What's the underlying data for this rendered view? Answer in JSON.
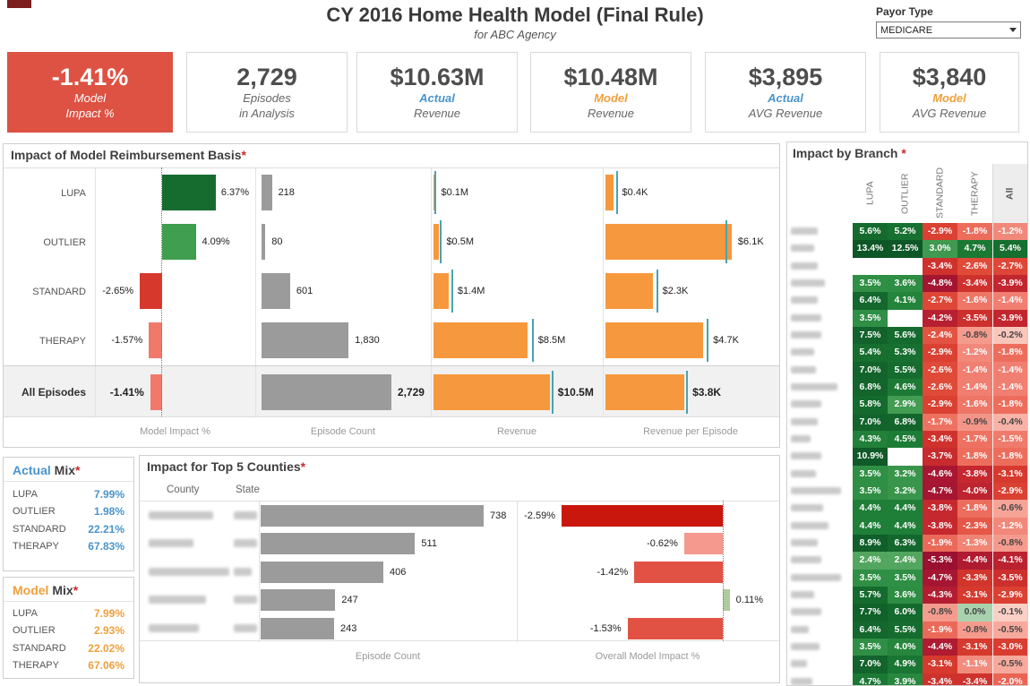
{
  "header": {
    "title": "CY 2016 Home Health Model (Final Rule)",
    "subtitle": "for ABC Agency",
    "payor_label": "Payor Type",
    "payor_value": "MEDICARE"
  },
  "kpis": [
    {
      "value": "-1.41%",
      "line1": "Model",
      "line2": "Impact %"
    },
    {
      "value": "2,729",
      "line1": "Episodes",
      "line2": "in Analysis"
    },
    {
      "value": "$10.63M",
      "line1": "Actual",
      "line2": "Revenue"
    },
    {
      "value": "$10.48M",
      "line1": "Model",
      "line2": "Revenue"
    },
    {
      "value": "$3,895",
      "line1": "Actual",
      "line2": "AVG Revenue"
    },
    {
      "value": "$3,840",
      "line1": "Model",
      "line2": "AVG Revenue"
    }
  ],
  "panels": {
    "impact_grid": {
      "title": "Impact of Model Reimbursement Basis",
      "asterisk": "*"
    },
    "branch": {
      "title": "Impact by Branch ",
      "asterisk": "*"
    },
    "counties": {
      "title": "Impact for Top 5 Counties",
      "asterisk": "*",
      "col_county": "County",
      "col_state": "State"
    },
    "actual_mix": {
      "accent": "Actual",
      "rest": " Mix",
      "asterisk": "*"
    },
    "model_mix": {
      "accent": "Model",
      "rest": " Mix",
      "asterisk": "*"
    }
  },
  "colors": {
    "kpi_red": "#dd5243",
    "actual_blue": "#4a94cc",
    "model_orange": "#efa03c",
    "bar_gray": "#9b9b9b",
    "bar_orange": "#f6993e",
    "ref_teal": "#4aa2b2",
    "asterisk_red": "#cc2a2a"
  },
  "chart_data": [
    {
      "id": "impact_grid",
      "type": "table",
      "title": "Impact of Model Reimbursement Basis*",
      "categories": [
        "LUPA",
        "OUTLIER",
        "STANDARD",
        "THERAPY",
        "All Episodes"
      ],
      "column_axis_labels": [
        "Model Impact %",
        "Episode Count",
        "Revenue",
        "Revenue per Episode"
      ],
      "series": [
        {
          "name": "Model Impact %",
          "values": [
            6.37,
            4.09,
            -2.65,
            -1.57,
            -1.41
          ],
          "labels": [
            "6.37%",
            "4.09%",
            "-2.65%",
            "-1.57%",
            "-1.41%"
          ],
          "bar_colors": [
            "#156c2e",
            "#3f9e4f",
            "#d6392c",
            "#f0796a",
            "#f0796a"
          ]
        },
        {
          "name": "Episode Count",
          "values": [
            218,
            80,
            601,
            1830,
            2729
          ],
          "labels": [
            "218",
            "80",
            "601",
            "1,830",
            "2,729"
          ]
        },
        {
          "name": "Revenue",
          "values": [
            0.1,
            0.5,
            1.4,
            8.5,
            10.5
          ],
          "labels": [
            "$0.1M",
            "$0.5M",
            "$1.4M",
            "$8.5M",
            "$10.5M"
          ],
          "ref_values": [
            0.12,
            0.6,
            1.6,
            8.85,
            10.63
          ]
        },
        {
          "name": "Revenue per Episode",
          "values": [
            0.4,
            6.1,
            2.3,
            4.7,
            3.8
          ],
          "labels": [
            "$0.4K",
            "$6.1K",
            "$2.3K",
            "$4.7K",
            "$3.8K"
          ],
          "ref_values": [
            0.5,
            5.8,
            2.45,
            4.9,
            3.9
          ]
        }
      ]
    },
    {
      "id": "branch_heatmap",
      "type": "heatmap",
      "title": "Impact by Branch *",
      "columns": [
        "LUPA",
        "OUTLIER",
        "STANDARD",
        "THERAPY",
        "All"
      ],
      "row_labels_redacted": true,
      "rows": [
        [
          5.6,
          5.2,
          -2.9,
          -1.8,
          -1.2
        ],
        [
          13.4,
          12.5,
          3.0,
          4.7,
          5.4
        ],
        [
          null,
          null,
          -3.4,
          -2.6,
          -2.7
        ],
        [
          3.5,
          3.6,
          -4.8,
          -3.4,
          -3.9
        ],
        [
          6.4,
          4.1,
          -2.7,
          -1.6,
          -1.4
        ],
        [
          3.5,
          null,
          -4.2,
          -3.5,
          -3.9
        ],
        [
          7.5,
          5.6,
          -2.4,
          -0.8,
          -0.2
        ],
        [
          5.4,
          5.3,
          -2.9,
          -1.2,
          -1.8
        ],
        [
          7.0,
          5.5,
          -2.6,
          -1.4,
          -1.4
        ],
        [
          6.8,
          4.6,
          -2.6,
          -1.4,
          -1.4
        ],
        [
          5.8,
          2.9,
          -2.9,
          -1.6,
          -1.8
        ],
        [
          7.0,
          6.8,
          -1.7,
          -0.9,
          -0.4
        ],
        [
          4.3,
          4.5,
          -3.4,
          -1.7,
          -1.5
        ],
        [
          10.9,
          null,
          -3.7,
          -1.8,
          -1.8
        ],
        [
          3.5,
          3.2,
          -4.6,
          -3.8,
          -3.1
        ],
        [
          3.5,
          3.2,
          -4.7,
          -4.0,
          -2.9
        ],
        [
          4.4,
          4.4,
          -3.8,
          -1.8,
          -0.6
        ],
        [
          4.4,
          4.4,
          -3.8,
          -2.3,
          -1.2
        ],
        [
          8.9,
          6.3,
          -1.9,
          -1.3,
          -0.8
        ],
        [
          2.4,
          2.4,
          -5.3,
          -4.4,
          -4.1
        ],
        [
          3.5,
          3.5,
          -4.7,
          -3.3,
          -3.5
        ],
        [
          5.7,
          3.6,
          -4.3,
          -3.1,
          -2.9
        ],
        [
          7.7,
          6.0,
          -0.8,
          0.0,
          -0.1
        ],
        [
          6.4,
          5.5,
          -1.9,
          -0.8,
          -0.5
        ],
        [
          3.5,
          4.0,
          -4.4,
          -3.1,
          -3.0
        ],
        [
          7.0,
          4.9,
          -3.1,
          -1.1,
          -0.5
        ],
        [
          4.7,
          3.9,
          -3.4,
          -3.4,
          -2.0
        ]
      ]
    },
    {
      "id": "top_counties",
      "type": "bar",
      "title": "Impact for Top 5 Counties*",
      "name_columns": [
        "County",
        "State"
      ],
      "names_redacted": true,
      "episode_counts": [
        738,
        511,
        406,
        247,
        243
      ],
      "impact_values": [
        -2.59,
        -0.62,
        -1.42,
        0.11,
        -1.53
      ],
      "impact_labels": [
        "-2.59%",
        "-0.62%",
        "-1.42%",
        "0.11%",
        "-1.53%"
      ],
      "impact_colors": [
        "#c9170e",
        "#f5988d",
        "#e25244",
        "#aecb9b",
        "#e25244"
      ],
      "xlabels": [
        "Episode Count",
        "Overall Model Impact %"
      ]
    },
    {
      "id": "actual_mix",
      "type": "table",
      "title": "Actual Mix*",
      "categories": [
        "LUPA",
        "OUTLIER",
        "STANDARD",
        "THERAPY"
      ],
      "values": [
        "7.99%",
        "1.98%",
        "22.21%",
        "67.83%"
      ]
    },
    {
      "id": "model_mix",
      "type": "table",
      "title": "Model Mix*",
      "categories": [
        "LUPA",
        "OUTLIER",
        "STANDARD",
        "THERAPY"
      ],
      "values": [
        "7.99%",
        "2.93%",
        "22.02%",
        "67.06%"
      ]
    }
  ]
}
